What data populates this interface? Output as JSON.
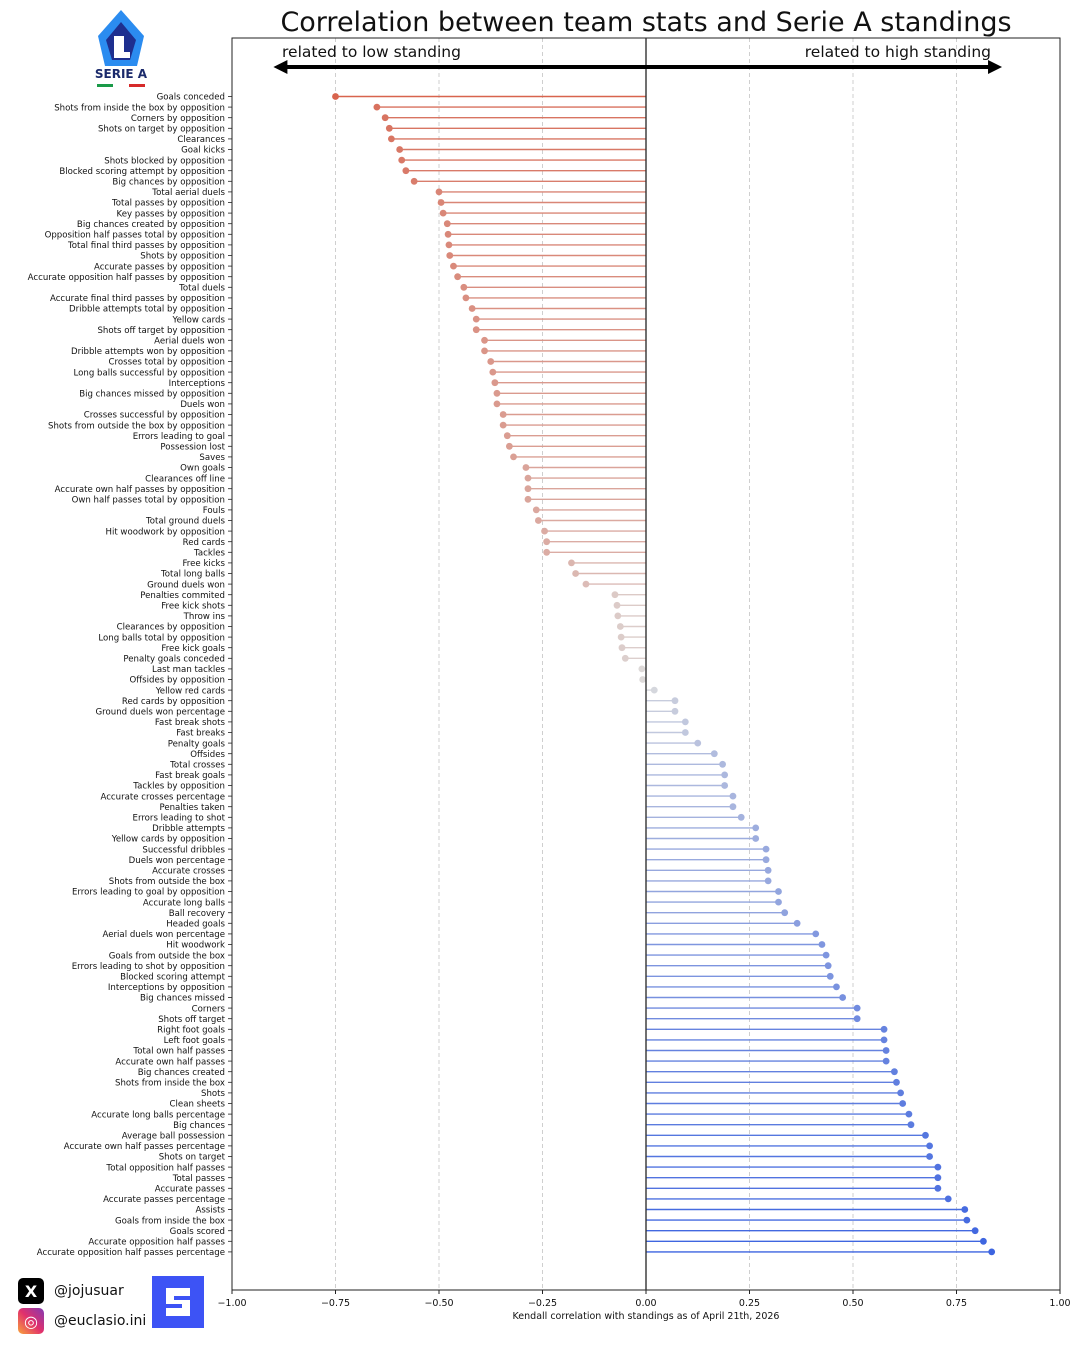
{
  "chart_data": {
    "type": "lollipop",
    "title": "Correlation between team stats and Serie A standings",
    "xlabel": "Kendall correlation with standings as of April 21th, 2026",
    "xlim": [
      -1.0,
      1.0
    ],
    "xticks": [
      "−1.00",
      "−0.75",
      "−0.50",
      "−0.25",
      "0.00",
      "0.25",
      "0.50",
      "0.75",
      "1.00"
    ],
    "xtick_values": [
      -1.0,
      -0.75,
      -0.5,
      -0.25,
      0.0,
      0.25,
      0.5,
      0.75,
      1.0
    ],
    "grid": "vertical",
    "annotations": {
      "left": "related to low standing",
      "right": "related to high standing"
    },
    "negative_color": "#d7573f",
    "positive_color": "#3a62e0",
    "categories": [
      "Goals conceded",
      "Shots from inside the box by opposition",
      "Corners by opposition",
      "Shots on target by opposition",
      "Clearances",
      "Goal kicks",
      "Shots blocked by opposition",
      "Blocked scoring attempt by opposition",
      "Big chances by opposition",
      "Total aerial duels",
      "Total passes by opposition",
      "Key passes by opposition",
      "Big chances created by opposition",
      "Opposition half passes total by opposition",
      "Total final third passes by opposition",
      "Shots by opposition",
      "Accurate passes by opposition",
      "Accurate opposition half passes by opposition",
      "Total duels",
      "Accurate final third passes by opposition",
      "Dribble attempts total by opposition",
      "Yellow cards",
      "Shots off target by opposition",
      "Aerial duels won",
      "Dribble attempts won by opposition",
      "Crosses total by opposition",
      "Long balls successful by opposition",
      "Interceptions",
      "Big chances missed by opposition",
      "Duels won",
      "Crosses successful by opposition",
      "Shots from outside the box by opposition",
      "Errors leading to goal",
      "Possession lost",
      "Saves",
      "Own goals",
      "Clearances off line",
      "Accurate own half passes by opposition",
      "Own half passes total by opposition",
      "Fouls",
      "Total ground duels",
      "Hit woodwork by opposition",
      "Red cards",
      "Tackles",
      "Free kicks",
      "Total long balls",
      "Ground duels won",
      "Penalties commited",
      "Free kick shots",
      "Throw ins",
      "Clearances by opposition",
      "Long balls total by opposition",
      "Free kick goals",
      "Penalty goals conceded",
      "Last man tackles",
      "Offsides by opposition",
      "Yellow red cards",
      "Red cards by opposition",
      "Ground duels won percentage",
      "Fast break shots",
      "Fast breaks",
      "Penalty goals",
      "Offsides",
      "Total crosses",
      "Fast break goals",
      "Tackles by opposition",
      "Accurate crosses percentage",
      "Penalties taken",
      "Errors leading to shot",
      "Dribble attempts",
      "Yellow cards by opposition",
      "Successful dribbles",
      "Duels won percentage",
      "Accurate crosses",
      "Shots from outside the box",
      "Errors leading to goal by opposition",
      "Accurate long balls",
      "Ball recovery",
      "Headed goals",
      "Aerial duels won percentage",
      "Hit woodwork",
      "Goals from outside the box",
      "Errors leading to shot by opposition",
      "Blocked scoring attempt",
      "Interceptions by opposition",
      "Big chances missed",
      "Corners",
      "Shots off target",
      "Right foot goals",
      "Left foot goals",
      "Total own half passes",
      "Accurate own half passes",
      "Big chances created",
      "Shots from inside the box",
      "Shots",
      "Clean sheets",
      "Accurate long balls percentage",
      "Big chances",
      "Average ball possession",
      "Accurate own half passes percentage",
      "Shots on target",
      "Total opposition half passes",
      "Total passes",
      "Accurate passes",
      "Accurate passes percentage",
      "Assists",
      "Goals from inside the box",
      "Goals scored",
      "Accurate opposition half passes",
      "Accurate opposition half passes percentage"
    ],
    "values": [
      -0.75,
      -0.65,
      -0.63,
      -0.62,
      -0.615,
      -0.595,
      -0.59,
      -0.58,
      -0.56,
      -0.5,
      -0.495,
      -0.49,
      -0.48,
      -0.478,
      -0.476,
      -0.474,
      -0.465,
      -0.455,
      -0.44,
      -0.435,
      -0.42,
      -0.41,
      -0.41,
      -0.39,
      -0.39,
      -0.375,
      -0.37,
      -0.365,
      -0.36,
      -0.36,
      -0.345,
      -0.345,
      -0.335,
      -0.33,
      -0.32,
      -0.29,
      -0.285,
      -0.285,
      -0.285,
      -0.265,
      -0.26,
      -0.245,
      -0.24,
      -0.24,
      -0.18,
      -0.17,
      -0.145,
      -0.075,
      -0.07,
      -0.068,
      -0.062,
      -0.06,
      -0.058,
      -0.05,
      -0.01,
      -0.008,
      0.02,
      0.07,
      0.07,
      0.095,
      0.095,
      0.125,
      0.165,
      0.185,
      0.19,
      0.19,
      0.21,
      0.21,
      0.23,
      0.265,
      0.265,
      0.29,
      0.29,
      0.295,
      0.295,
      0.32,
      0.32,
      0.335,
      0.365,
      0.41,
      0.425,
      0.435,
      0.44,
      0.445,
      0.46,
      0.475,
      0.51,
      0.51,
      0.575,
      0.575,
      0.58,
      0.58,
      0.6,
      0.605,
      0.615,
      0.62,
      0.635,
      0.64,
      0.675,
      0.685,
      0.685,
      0.705,
      0.705,
      0.705,
      0.73,
      0.77,
      0.775,
      0.795,
      0.815,
      0.835
    ]
  },
  "logo": {
    "text": "SERIE A",
    "colors": [
      "#2b8cf0",
      "#1e2f8f"
    ]
  },
  "footer": {
    "socials": [
      {
        "icon": "x-logo-icon",
        "handle": "@jojusuar"
      },
      {
        "icon": "instagram-icon",
        "handle": "@euclasio.ini"
      }
    ],
    "brand_icon": "brand-logo-icon"
  }
}
